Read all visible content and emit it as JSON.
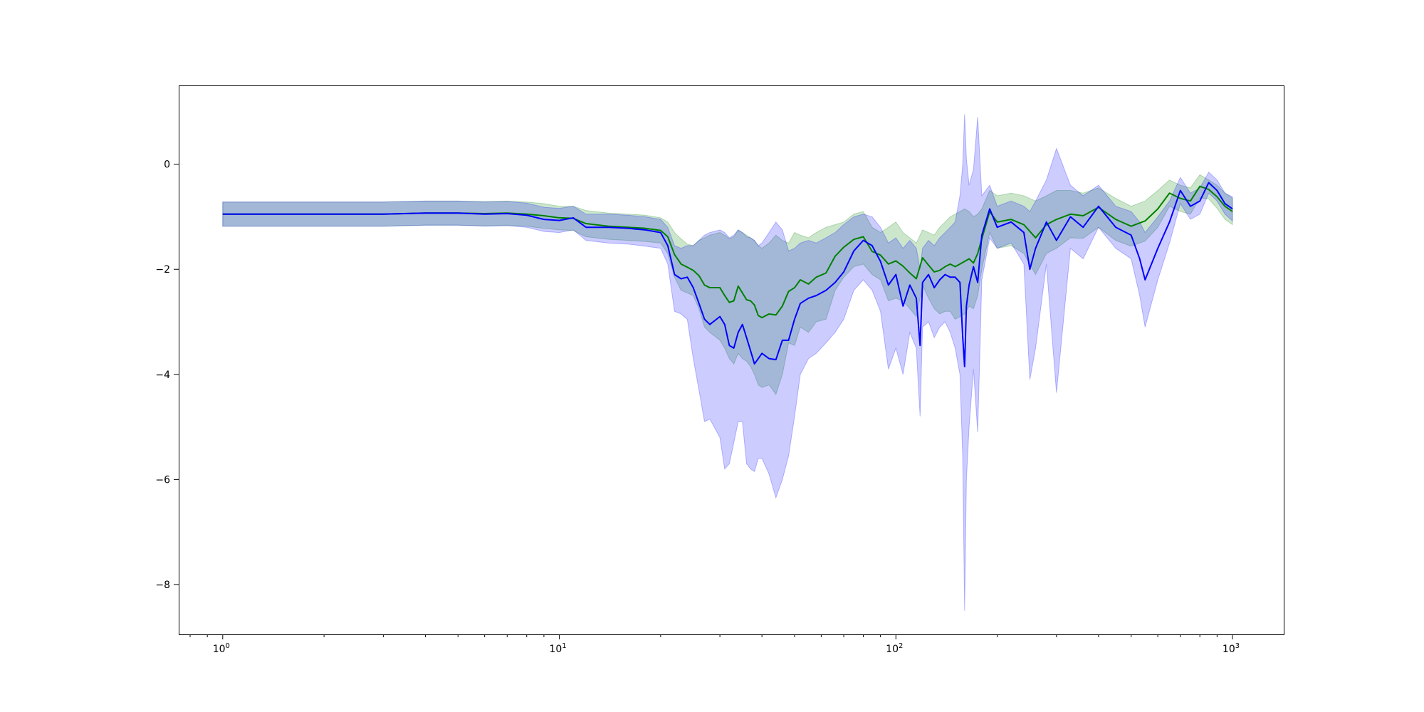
{
  "chart_data": {
    "type": "line",
    "title": "",
    "xlabel": "",
    "ylabel": "",
    "xscale": "log",
    "xlim": [
      0.74,
      1420
    ],
    "ylim": [
      -8.95,
      1.5
    ],
    "grid": false,
    "legend": "none",
    "x_ticks": [
      {
        "value": 1,
        "base": "10",
        "exp": "0"
      },
      {
        "value": 10,
        "base": "10",
        "exp": "1"
      },
      {
        "value": 100,
        "base": "10",
        "exp": "2"
      },
      {
        "value": 1000,
        "base": "10",
        "exp": "3"
      }
    ],
    "y_ticks": [
      {
        "value": 0,
        "label": "0"
      },
      {
        "value": -2,
        "label": "−2"
      },
      {
        "value": -4,
        "label": "−4"
      },
      {
        "value": -6,
        "label": "−6"
      },
      {
        "value": -8,
        "label": "−8"
      }
    ],
    "series": [
      {
        "color": "#008000",
        "band_color": "#008000",
        "band_opacity": 0.2,
        "x": [
          1,
          2,
          3,
          4,
          5,
          6,
          7,
          8,
          9,
          10,
          11,
          12,
          14,
          16,
          18,
          20,
          21,
          22,
          23,
          24,
          25,
          26,
          27,
          28,
          30,
          31,
          32,
          33,
          34,
          35,
          36,
          37,
          38,
          39,
          40,
          42,
          44,
          46,
          48,
          50,
          52,
          55,
          58,
          62,
          66,
          70,
          75,
          80,
          85,
          90,
          95,
          100,
          105,
          110,
          115,
          120,
          125,
          130,
          135,
          140,
          145,
          150,
          155,
          160,
          165,
          170,
          175,
          180,
          190,
          200,
          220,
          240,
          260,
          280,
          300,
          330,
          360,
          400,
          450,
          500,
          550,
          600,
          650,
          700,
          750,
          800,
          850,
          900,
          950,
          1000
        ],
        "y": [
          -0.95,
          -0.95,
          -0.95,
          -0.93,
          -0.93,
          -0.94,
          -0.93,
          -0.95,
          -0.98,
          -1.02,
          -1.03,
          -1.13,
          -1.18,
          -1.2,
          -1.22,
          -1.26,
          -1.38,
          -1.72,
          -1.9,
          -1.96,
          -2.02,
          -2.12,
          -2.3,
          -2.35,
          -2.35,
          -2.5,
          -2.63,
          -2.6,
          -2.32,
          -2.45,
          -2.58,
          -2.6,
          -2.68,
          -2.88,
          -2.92,
          -2.85,
          -2.87,
          -2.7,
          -2.42,
          -2.35,
          -2.2,
          -2.28,
          -2.15,
          -2.07,
          -1.75,
          -1.58,
          -1.43,
          -1.38,
          -1.66,
          -1.73,
          -1.9,
          -1.84,
          -1.94,
          -2.07,
          -2.18,
          -1.78,
          -1.92,
          -2.05,
          -2.02,
          -1.95,
          -1.9,
          -1.95,
          -1.9,
          -1.85,
          -1.8,
          -1.88,
          -1.7,
          -1.42,
          -0.9,
          -1.1,
          -1.05,
          -1.15,
          -1.4,
          -1.15,
          -1.05,
          -0.95,
          -0.98,
          -0.82,
          -1.05,
          -1.18,
          -1.08,
          -0.85,
          -0.55,
          -0.65,
          -0.7,
          -0.42,
          -0.48,
          -0.62,
          -0.8,
          -0.9
        ],
        "upper": [
          -0.72,
          -0.72,
          -0.72,
          -0.7,
          -0.7,
          -0.71,
          -0.7,
          -0.72,
          -0.75,
          -0.8,
          -0.8,
          -0.88,
          -0.93,
          -0.95,
          -0.97,
          -1.02,
          -1.1,
          -1.3,
          -1.42,
          -1.52,
          -1.55,
          -1.45,
          -1.4,
          -1.35,
          -1.3,
          -1.35,
          -1.42,
          -1.38,
          -1.25,
          -1.3,
          -1.35,
          -1.4,
          -1.45,
          -1.55,
          -1.6,
          -1.5,
          -1.35,
          -1.45,
          -1.5,
          -1.3,
          -1.35,
          -1.4,
          -1.3,
          -1.2,
          -1.15,
          -1.1,
          -0.95,
          -0.9,
          -1.2,
          -1.3,
          -1.2,
          -1.1,
          -1.3,
          -1.4,
          -1.5,
          -1.25,
          -1.3,
          -1.35,
          -1.2,
          -1.1,
          -1.0,
          -0.95,
          -0.9,
          -0.85,
          -0.9,
          -1.0,
          -0.95,
          -0.85,
          -0.5,
          -0.6,
          -0.55,
          -0.6,
          -0.7,
          -0.6,
          -0.5,
          -0.5,
          -0.55,
          -0.45,
          -0.65,
          -0.8,
          -0.7,
          -0.5,
          -0.3,
          -0.4,
          -0.45,
          -0.2,
          -0.3,
          -0.4,
          -0.55,
          -0.65
        ],
        "lower": [
          -1.18,
          -1.18,
          -1.18,
          -1.16,
          -1.16,
          -1.17,
          -1.16,
          -1.18,
          -1.22,
          -1.25,
          -1.26,
          -1.38,
          -1.43,
          -1.45,
          -1.47,
          -1.5,
          -1.7,
          -2.15,
          -2.4,
          -2.45,
          -2.5,
          -2.75,
          -3.1,
          -3.2,
          -3.35,
          -3.5,
          -3.7,
          -3.8,
          -3.6,
          -3.7,
          -3.75,
          -3.85,
          -4.0,
          -4.2,
          -4.25,
          -4.2,
          -4.38,
          -4.0,
          -3.4,
          -3.45,
          -3.1,
          -3.2,
          -3.0,
          -2.95,
          -2.4,
          -2.15,
          -1.95,
          -1.9,
          -2.1,
          -2.2,
          -2.6,
          -2.55,
          -2.6,
          -2.75,
          -2.9,
          -2.3,
          -2.55,
          -2.75,
          -2.85,
          -2.8,
          -2.8,
          -2.95,
          -2.9,
          -2.85,
          -2.7,
          -2.75,
          -2.5,
          -2.0,
          -1.3,
          -1.6,
          -1.55,
          -1.7,
          -2.1,
          -1.7,
          -1.6,
          -1.4,
          -1.41,
          -1.2,
          -1.45,
          -1.56,
          -1.46,
          -1.2,
          -0.8,
          -0.9,
          -0.95,
          -0.64,
          -0.66,
          -0.84,
          -1.05,
          -1.15
        ]
      },
      {
        "color": "#0000ff",
        "band_color": "#0000ff",
        "band_opacity": 0.2,
        "x": [
          1,
          2,
          3,
          4,
          5,
          6,
          7,
          8,
          9,
          10,
          11,
          12,
          14,
          16,
          18,
          20,
          21,
          22,
          23,
          24,
          25,
          26,
          27,
          28,
          30,
          31,
          32,
          33,
          34,
          35,
          36,
          37,
          38,
          39,
          40,
          42,
          44,
          46,
          48,
          50,
          52,
          55,
          58,
          62,
          66,
          70,
          75,
          80,
          85,
          90,
          95,
          100,
          105,
          110,
          115,
          118,
          120,
          125,
          130,
          135,
          140,
          145,
          150,
          155,
          158,
          160,
          162,
          165,
          170,
          175,
          180,
          190,
          200,
          220,
          240,
          250,
          260,
          280,
          300,
          330,
          360,
          400,
          450,
          500,
          530,
          550,
          600,
          650,
          700,
          750,
          800,
          850,
          900,
          950,
          1000
        ],
        "y": [
          -0.95,
          -0.95,
          -0.95,
          -0.93,
          -0.93,
          -0.95,
          -0.94,
          -0.97,
          -1.05,
          -1.07,
          -1.02,
          -1.2,
          -1.2,
          -1.22,
          -1.25,
          -1.3,
          -1.55,
          -2.1,
          -2.18,
          -2.15,
          -2.35,
          -2.65,
          -2.95,
          -3.05,
          -2.9,
          -3.05,
          -3.45,
          -3.5,
          -3.2,
          -3.05,
          -3.3,
          -3.55,
          -3.8,
          -3.7,
          -3.6,
          -3.7,
          -3.72,
          -3.35,
          -3.35,
          -2.95,
          -2.65,
          -2.55,
          -2.5,
          -2.4,
          -2.25,
          -2.05,
          -1.65,
          -1.45,
          -1.55,
          -1.85,
          -2.3,
          -2.1,
          -2.7,
          -2.3,
          -2.55,
          -3.45,
          -2.25,
          -2.1,
          -2.35,
          -2.2,
          -2.1,
          -2.15,
          -2.15,
          -2.25,
          -3.3,
          -3.85,
          -2.7,
          -2.3,
          -1.95,
          -2.25,
          -1.35,
          -0.85,
          -1.2,
          -1.1,
          -1.3,
          -2.0,
          -1.6,
          -1.1,
          -1.45,
          -1.0,
          -1.2,
          -0.8,
          -1.2,
          -1.35,
          -1.8,
          -2.2,
          -1.6,
          -1.1,
          -0.5,
          -0.8,
          -0.7,
          -0.35,
          -0.5,
          -0.75,
          -0.85
        ],
        "upper": [
          -0.72,
          -0.72,
          -0.72,
          -0.7,
          -0.7,
          -0.72,
          -0.71,
          -0.74,
          -0.82,
          -0.84,
          -0.8,
          -0.95,
          -0.95,
          -0.97,
          -1.0,
          -1.05,
          -1.2,
          -1.55,
          -1.6,
          -1.55,
          -1.55,
          -1.45,
          -1.35,
          -1.3,
          -1.25,
          -1.3,
          -1.4,
          -1.35,
          -1.25,
          -1.3,
          -1.38,
          -1.4,
          -1.45,
          -1.55,
          -1.5,
          -1.3,
          -1.1,
          -1.25,
          -1.65,
          -1.6,
          -1.5,
          -1.45,
          -1.5,
          -1.4,
          -1.3,
          -1.15,
          -1.0,
          -0.95,
          -1.0,
          -1.2,
          -1.5,
          -1.4,
          -1.6,
          -1.45,
          -1.6,
          -2.0,
          -1.6,
          -1.45,
          -1.55,
          -1.4,
          -1.3,
          -1.2,
          -1.1,
          -0.6,
          0.0,
          0.95,
          0.1,
          -0.4,
          -0.1,
          0.9,
          -0.6,
          -0.4,
          -0.8,
          -0.7,
          -0.8,
          -0.9,
          -0.7,
          -0.3,
          0.3,
          -0.4,
          -0.6,
          -0.4,
          -0.8,
          -0.9,
          -1.1,
          -1.3,
          -1.0,
          -0.7,
          -0.25,
          -0.55,
          -0.45,
          -0.15,
          -0.3,
          -0.55,
          -0.62
        ],
        "lower": [
          -1.18,
          -1.18,
          -1.18,
          -1.16,
          -1.16,
          -1.18,
          -1.17,
          -1.2,
          -1.28,
          -1.3,
          -1.25,
          -1.45,
          -1.5,
          -1.52,
          -1.56,
          -1.6,
          -1.9,
          -2.8,
          -2.85,
          -2.95,
          -3.7,
          -4.3,
          -4.9,
          -4.85,
          -5.2,
          -5.8,
          -5.7,
          -5.3,
          -4.9,
          -4.9,
          -5.7,
          -5.8,
          -5.85,
          -5.6,
          -5.6,
          -5.9,
          -6.35,
          -6.0,
          -5.55,
          -4.8,
          -4.0,
          -3.7,
          -3.6,
          -3.4,
          -3.2,
          -2.95,
          -2.4,
          -2.2,
          -2.4,
          -2.8,
          -3.9,
          -3.5,
          -4.0,
          -3.2,
          -3.5,
          -4.8,
          -3.1,
          -3.0,
          -3.3,
          -3.1,
          -3.0,
          -3.2,
          -3.5,
          -4.0,
          -5.6,
          -8.5,
          -6.0,
          -5.0,
          -3.9,
          -5.1,
          -2.2,
          -1.4,
          -1.6,
          -1.5,
          -1.9,
          -4.1,
          -3.5,
          -1.9,
          -4.35,
          -1.6,
          -1.8,
          -1.2,
          -1.6,
          -1.8,
          -2.5,
          -3.1,
          -2.2,
          -1.5,
          -0.75,
          -1.05,
          -0.95,
          -0.55,
          -0.7,
          -0.95,
          -1.08
        ]
      }
    ]
  }
}
